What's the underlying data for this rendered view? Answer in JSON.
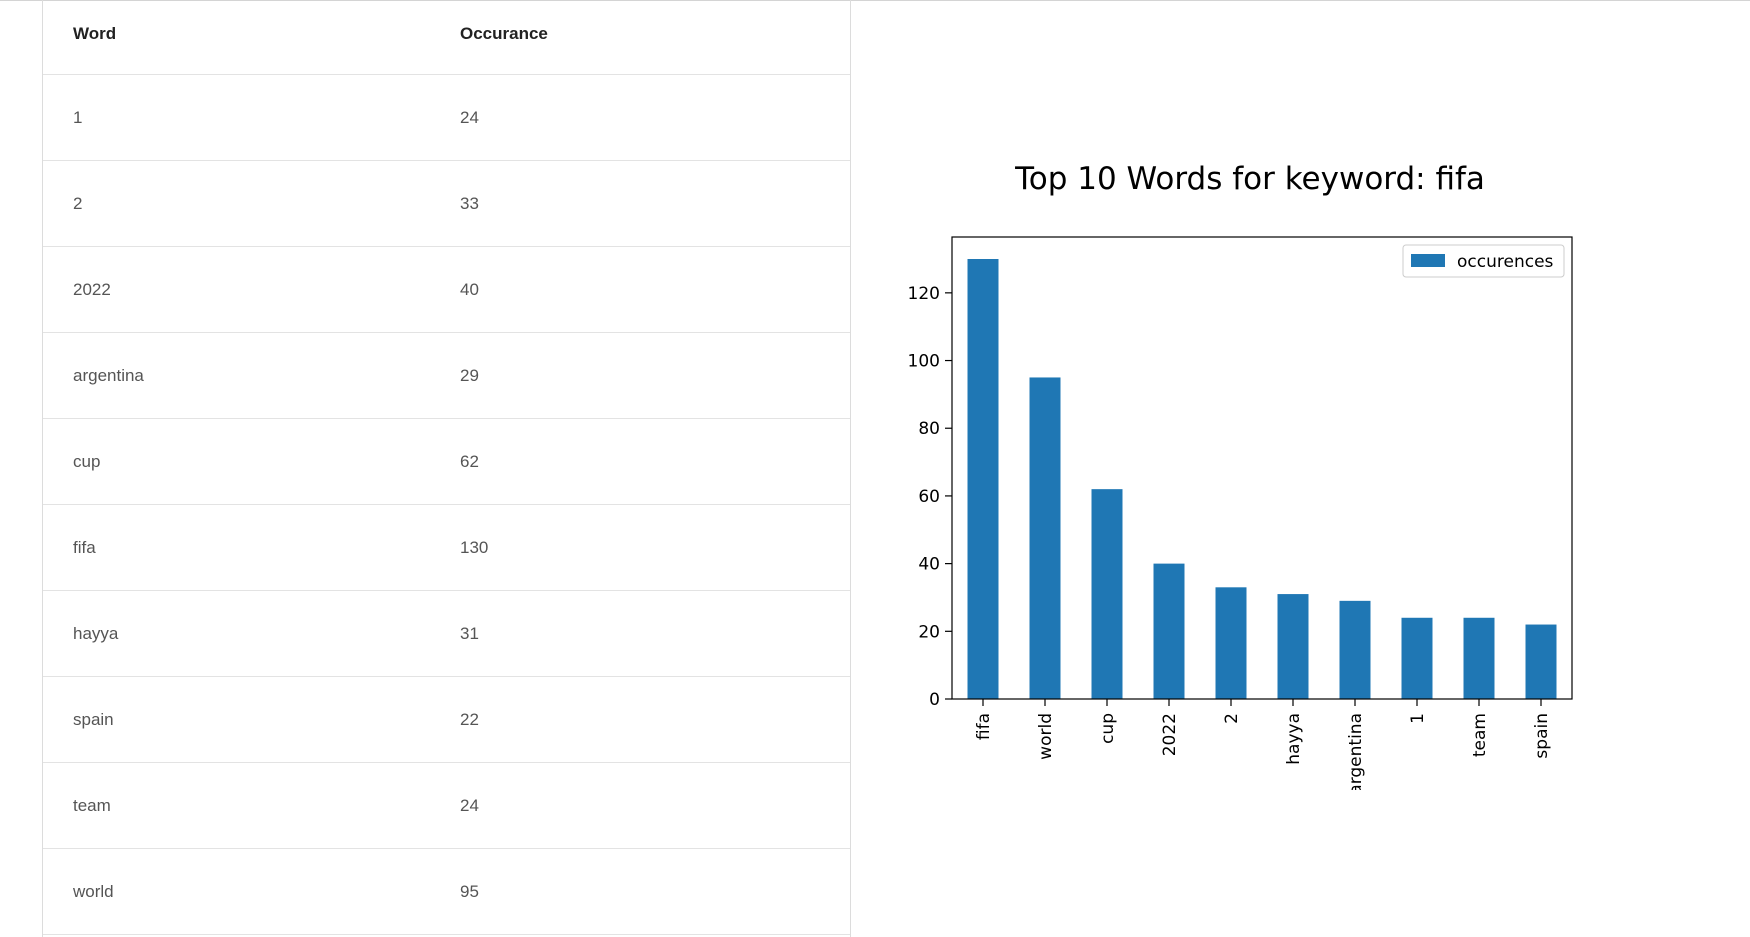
{
  "table": {
    "headers": {
      "word": "Word",
      "occurance": "Occurance"
    },
    "rows": [
      {
        "word": "1",
        "count": "24"
      },
      {
        "word": "2",
        "count": "33"
      },
      {
        "word": "2022",
        "count": "40"
      },
      {
        "word": "argentina",
        "count": "29"
      },
      {
        "word": "cup",
        "count": "62"
      },
      {
        "word": "fifa",
        "count": "130"
      },
      {
        "word": "hayya",
        "count": "31"
      },
      {
        "word": "spain",
        "count": "22"
      },
      {
        "word": "team",
        "count": "24"
      },
      {
        "word": "world",
        "count": "95"
      }
    ]
  },
  "chart_data": {
    "type": "bar",
    "title": "Top 10 Words for keyword: fifa",
    "categories": [
      "fifa",
      "world",
      "cup",
      "2022",
      "2",
      "hayya",
      "argentina",
      "1",
      "team",
      "spain"
    ],
    "series": [
      {
        "name": "occurences",
        "values": [
          130,
          95,
          62,
          40,
          33,
          31,
          29,
          24,
          24,
          22
        ],
        "color": "#1f77b4"
      }
    ],
    "yticks": [
      0,
      20,
      40,
      60,
      80,
      100,
      120
    ],
    "ylim": [
      0,
      136.5
    ],
    "xlabel": "",
    "ylabel": "",
    "grid": false,
    "legend_position": "top-right"
  }
}
